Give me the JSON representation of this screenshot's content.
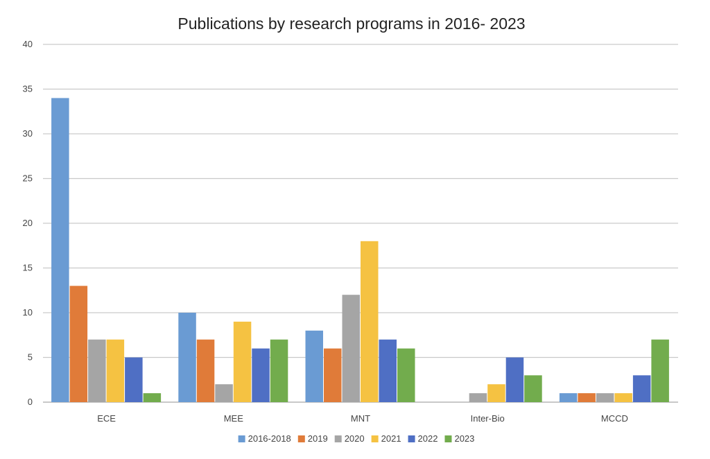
{
  "chart_data": {
    "type": "bar",
    "title": "Publications by research programs in 2016- 2023",
    "xlabel": "",
    "ylabel": "",
    "categories": [
      "ECE",
      "MEE",
      "MNT",
      "Inter-Bio",
      "MCCD"
    ],
    "ylim": [
      0,
      40
    ],
    "yticks": [
      0,
      5,
      10,
      15,
      20,
      25,
      30,
      35,
      40
    ],
    "ytick_labels": [
      "0",
      "5",
      "10",
      "15",
      "20",
      "25",
      "30",
      "35",
      "40"
    ],
    "grid": true,
    "legend_position": "bottom",
    "series": [
      {
        "name": "2016-2018",
        "color": "#6a9bd3",
        "values": [
          34,
          10,
          8,
          0,
          1
        ]
      },
      {
        "name": "2019",
        "color": "#e07b39",
        "values": [
          13,
          7,
          6,
          0,
          1
        ]
      },
      {
        "name": "2020",
        "color": "#a5a5a5",
        "values": [
          7,
          2,
          12,
          1,
          1
        ]
      },
      {
        "name": "2021",
        "color": "#f5c242",
        "values": [
          7,
          9,
          18,
          2,
          1
        ]
      },
      {
        "name": "2022",
        "color": "#4f6fc4",
        "values": [
          5,
          6,
          7,
          5,
          3
        ]
      },
      {
        "name": "2023",
        "color": "#72ac4d",
        "values": [
          1,
          7,
          6,
          3,
          7
        ]
      }
    ],
    "colors": {
      "grid": "#c9c9c9",
      "axis": "#a8a8a8",
      "background": "#ffffff"
    }
  }
}
